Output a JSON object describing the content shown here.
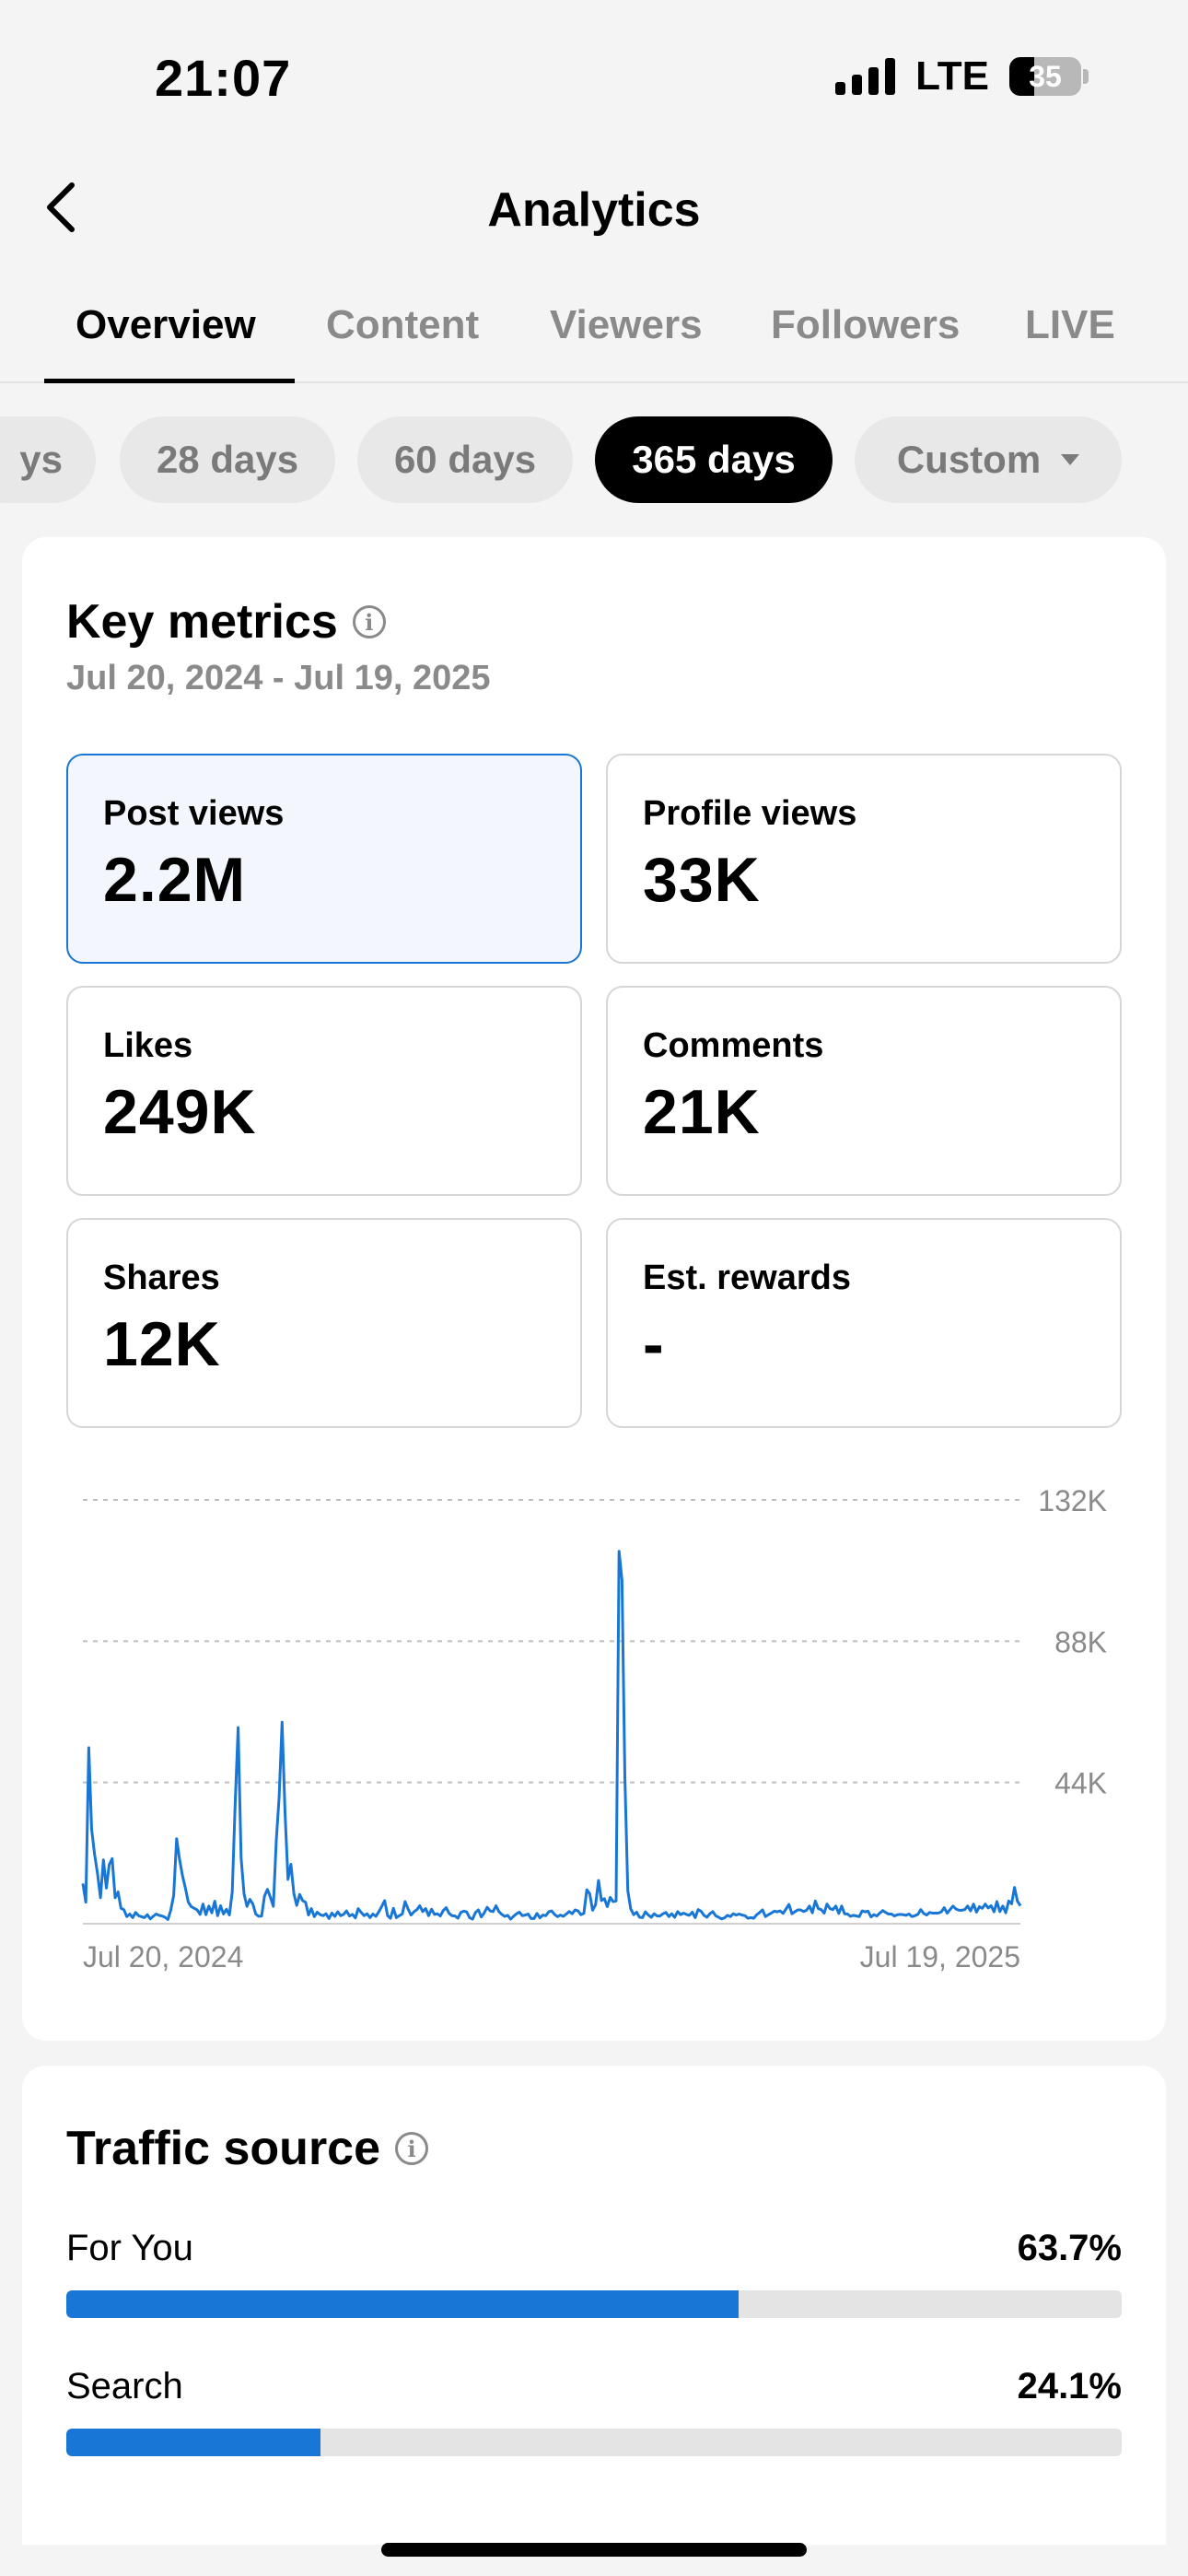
{
  "status_bar": {
    "time": "21:07",
    "network": "LTE",
    "battery": "35",
    "battery_level": 0.35
  },
  "header": {
    "title": "Analytics",
    "back_icon": "chevron-left-icon"
  },
  "tabs": [
    {
      "label": "Overview",
      "active": true
    },
    {
      "label": "Content",
      "active": false
    },
    {
      "label": "Viewers",
      "active": false
    },
    {
      "label": "Followers",
      "active": false
    },
    {
      "label": "LIVE",
      "active": false
    }
  ],
  "date_filters": [
    {
      "label": "ys",
      "active": false
    },
    {
      "label": "28 days",
      "active": false
    },
    {
      "label": "60 days",
      "active": false
    },
    {
      "label": "365 days",
      "active": true
    },
    {
      "label": "Custom",
      "active": false,
      "icon": "caret-down-icon"
    }
  ],
  "key_metrics": {
    "title": "Key metrics",
    "date_range": "Jul 20, 2024 - Jul 19, 2025",
    "metrics": [
      {
        "label": "Post views",
        "value": "2.2M",
        "selected": true
      },
      {
        "label": "Profile views",
        "value": "33K",
        "selected": false
      },
      {
        "label": "Likes",
        "value": "249K",
        "selected": false
      },
      {
        "label": "Comments",
        "value": "21K",
        "selected": false
      },
      {
        "label": "Shares",
        "value": "12K",
        "selected": false
      },
      {
        "label": "Est. rewards",
        "value": "-",
        "selected": false
      }
    ]
  },
  "chart_data": {
    "type": "line",
    "title": "",
    "xlabel": "",
    "ylabel": "",
    "x_start_label": "Jul 20, 2024",
    "x_end_label": "Jul 19, 2025",
    "ylim": [
      0,
      132000
    ],
    "y_ticks": [
      {
        "value": 132000,
        "label": "132K"
      },
      {
        "value": 88000,
        "label": "88K"
      },
      {
        "value": 44000,
        "label": "44K"
      }
    ],
    "grid": true,
    "color": "#1877d6",
    "series": [
      {
        "values": [
          12500,
          6700,
          54800,
          29400,
          21600,
          15600,
          8100,
          19900,
          11100,
          18400,
          20300,
          8100,
          9900,
          4800,
          4400,
          2200,
          3000,
          1900,
          3500,
          2500,
          2200,
          1900,
          2800,
          1500,
          2300,
          3000,
          2600,
          2400,
          2000,
          1300,
          4200,
          8800,
          26500,
          20000,
          14900,
          11100,
          6700,
          5300,
          4800,
          4300,
          2900,
          6100,
          2800,
          5500,
          3400,
          7000,
          2500,
          5600,
          3000,
          4500,
          2700,
          9900,
          37700,
          61100,
          20500,
          9300,
          5400,
          7600,
          6200,
          3000,
          2300,
          2400,
          8600,
          10700,
          8200,
          5400,
          25900,
          39400,
          62800,
          34600,
          13800,
          18500,
          9400,
          5700,
          9100,
          7200,
          6700,
          2700,
          4700,
          2200,
          3600,
          2800,
          2500,
          3100,
          1600,
          3300,
          2300,
          3700,
          2500,
          2900,
          4000,
          2400,
          2900,
          1800,
          4700,
          3500,
          2500,
          3100,
          1900,
          3000,
          2300,
          3700,
          5400,
          7200,
          2500,
          1700,
          4800,
          1900,
          2500,
          3000,
          6900,
          4600,
          2700,
          3700,
          4400,
          5600,
          3800,
          4700,
          2500,
          4500,
          2900,
          3100,
          2400,
          4100,
          5000,
          3200,
          2500,
          2400,
          1700,
          3500,
          3900,
          3700,
          1900,
          1400,
          3500,
          4300,
          2100,
          3400,
          5100,
          4000,
          3800,
          5600,
          3800,
          2900,
          2300,
          2600,
          1400,
          2300,
          3100,
          3600,
          2500,
          2700,
          3000,
          1600,
          1600,
          3200,
          1800,
          2700,
          2500,
          3700,
          4000,
          2900,
          2200,
          2700,
          2300,
          3000,
          3800,
          3100,
          4300,
          4000,
          2800,
          3200,
          10600,
          9300,
          4200,
          5900,
          13500,
          7200,
          7800,
          5300,
          8200,
          6900,
          7100,
          116000,
          107000,
          46000,
          10300,
          4600,
          2800,
          3600,
          2000,
          1900,
          3700,
          2700,
          2000,
          3100,
          2400,
          2400,
          3100,
          3500,
          2200,
          3100,
          2000,
          3800,
          2800,
          3300,
          2900,
          2600,
          3600,
          1900,
          4400,
          3900,
          2600,
          2000,
          3100,
          3800,
          2500,
          2000,
          1500,
          1800,
          2600,
          2200,
          3100,
          2700,
          3000,
          2700,
          2500,
          1700,
          1900,
          1700,
          2800,
          3500,
          4300,
          2200,
          2800,
          3300,
          3900,
          3700,
          4000,
          3200,
          4600,
          6000,
          3100,
          3700,
          4300,
          4300,
          3800,
          4200,
          5500,
          3400,
          7100,
          4700,
          4400,
          3300,
          6100,
          4700,
          4400,
          5500,
          3200,
          5500,
          3100,
          3000,
          2300,
          2600,
          2400,
          2200,
          4000,
          3700,
          3900,
          2100,
          2800,
          2400,
          3300,
          4100,
          3500,
          3000,
          3000,
          2400,
          2800,
          2900,
          2800,
          2600,
          3000,
          2200,
          2500,
          2900,
          4400,
          3200,
          2700,
          3500,
          3300,
          3300,
          3300,
          3700,
          5000,
          3300,
          4400,
          5500,
          4600,
          4200,
          4200,
          4400,
          5500,
          4000,
          6100,
          3600,
          5300,
          4800,
          6100,
          4900,
          5600,
          3700,
          6900,
          3800,
          5500,
          3400,
          7100,
          6200,
          11300,
          7000,
          5600
        ]
      }
    ]
  },
  "traffic_source": {
    "title": "Traffic source",
    "rows": [
      {
        "label": "For You",
        "value": "63.7%",
        "fraction": 0.637
      },
      {
        "label": "Search",
        "value": "24.1%",
        "fraction": 0.241
      }
    ]
  }
}
